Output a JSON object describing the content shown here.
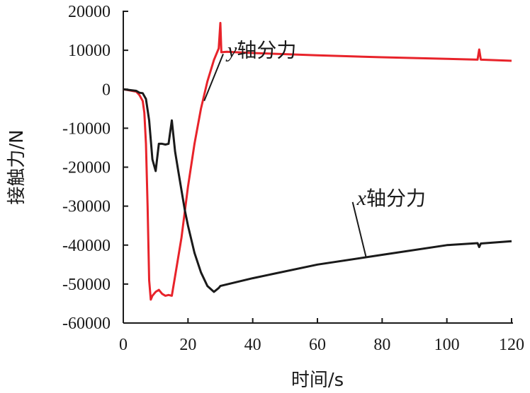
{
  "chart_data": {
    "type": "line",
    "xlabel": "时间/s",
    "ylabel": "接触力/N",
    "xlim": [
      0,
      120
    ],
    "ylim": [
      -60000,
      20000
    ],
    "x_ticks": [
      0,
      20,
      40,
      60,
      80,
      100,
      120
    ],
    "y_ticks": [
      20000,
      10000,
      0,
      -10000,
      -20000,
      -30000,
      -40000,
      -50000,
      -60000
    ],
    "grid": false,
    "legend": "none",
    "series": [
      {
        "name": "y轴分力",
        "color": "#e8232a",
        "points": [
          [
            0,
            0
          ],
          [
            2,
            -300
          ],
          [
            4,
            -600
          ],
          [
            5,
            -1500
          ],
          [
            6,
            -3000
          ],
          [
            6.5,
            -6000
          ],
          [
            7,
            -14000
          ],
          [
            7.5,
            -30000
          ],
          [
            8,
            -49000
          ],
          [
            8.5,
            -54000
          ],
          [
            9,
            -53000
          ],
          [
            10,
            -52000
          ],
          [
            11,
            -51500
          ],
          [
            12,
            -52500
          ],
          [
            13,
            -53000
          ],
          [
            14,
            -52800
          ],
          [
            15,
            -53000
          ],
          [
            16,
            -48000
          ],
          [
            18,
            -38000
          ],
          [
            20,
            -25000
          ],
          [
            22,
            -14000
          ],
          [
            24,
            -5000
          ],
          [
            26,
            2000
          ],
          [
            28,
            7500
          ],
          [
            29.5,
            10500
          ],
          [
            30,
            17000
          ],
          [
            30.3,
            9500
          ],
          [
            32,
            9600
          ],
          [
            40,
            9300
          ],
          [
            60,
            8700
          ],
          [
            80,
            8200
          ],
          [
            100,
            7800
          ],
          [
            109.5,
            7600
          ],
          [
            110,
            10200
          ],
          [
            110.5,
            7600
          ],
          [
            120,
            7300
          ]
        ]
      },
      {
        "name": "x轴分力",
        "color": "#1a1a1a",
        "points": [
          [
            0,
            0
          ],
          [
            2,
            -200
          ],
          [
            4,
            -400
          ],
          [
            5,
            -900
          ],
          [
            6,
            -1000
          ],
          [
            7,
            -2500
          ],
          [
            8,
            -8000
          ],
          [
            9,
            -18000
          ],
          [
            10,
            -21000
          ],
          [
            11,
            -14000
          ],
          [
            12,
            -14000
          ],
          [
            13,
            -14200
          ],
          [
            14,
            -14000
          ],
          [
            15,
            -8000
          ],
          [
            16,
            -16000
          ],
          [
            17,
            -21000
          ],
          [
            18,
            -26000
          ],
          [
            19,
            -31000
          ],
          [
            20,
            -35000
          ],
          [
            22,
            -42000
          ],
          [
            24,
            -47000
          ],
          [
            26,
            -50500
          ],
          [
            28,
            -52000
          ],
          [
            29.5,
            -51000
          ],
          [
            30,
            -50500
          ],
          [
            35,
            -49500
          ],
          [
            40,
            -48500
          ],
          [
            60,
            -45000
          ],
          [
            80,
            -42500
          ],
          [
            100,
            -40000
          ],
          [
            109.5,
            -39500
          ],
          [
            110,
            -40500
          ],
          [
            110.5,
            -39600
          ],
          [
            120,
            -39000
          ]
        ]
      }
    ],
    "annotations": [
      {
        "var": "y",
        "text": "轴分力",
        "x": 30,
        "y": 10500,
        "target_x": 25,
        "target_y": -3000
      },
      {
        "var": "x",
        "text": "轴分力",
        "x": 70,
        "y": -27500,
        "target_x": 75,
        "target_y": -43000
      }
    ]
  }
}
